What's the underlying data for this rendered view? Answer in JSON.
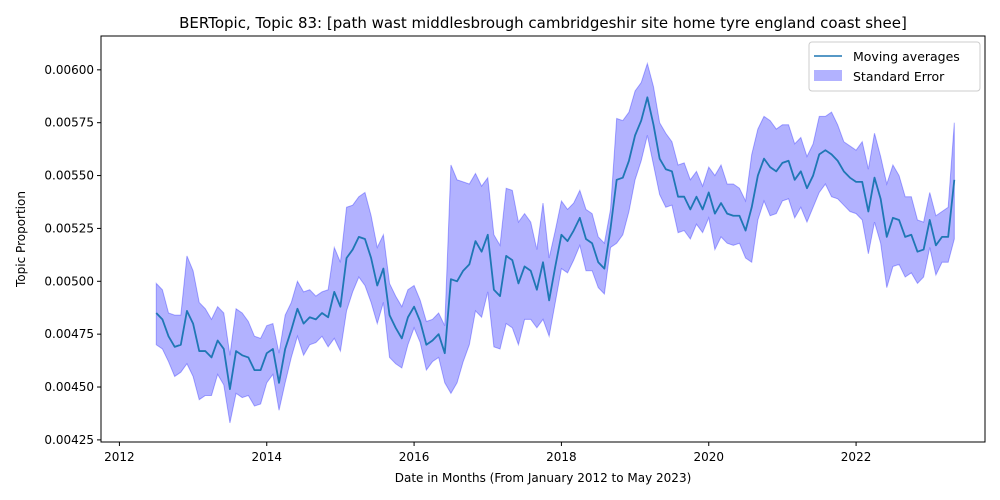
{
  "chart_data": {
    "type": "line",
    "title": "BERTopic, Topic 83: [path wast middlesbrough cambridgeshir site home tyre england coast shee]",
    "xlabel": "Date in Months (From January 2012 to May 2023)",
    "ylabel": "Topic Proportion",
    "xlim": [
      "2011-10",
      "2023-10"
    ],
    "ylim": [
      0.00424,
      0.00616
    ],
    "x_ticks": [
      "2012",
      "2014",
      "2016",
      "2018",
      "2020",
      "2022"
    ],
    "y_ticks": [
      "0.00425",
      "0.00450",
      "0.00475",
      "0.00500",
      "0.00525",
      "0.00550",
      "0.00575",
      "0.00600"
    ],
    "grid": false,
    "legend_position": "top-right",
    "colors": {
      "line": "#1f77b4",
      "band": "#0000ff",
      "band_opacity": 0.3
    },
    "series": [
      {
        "name": "Moving averages",
        "points": [
          [
            "2012-07",
            0.00485
          ],
          [
            "2012-08",
            0.00482
          ],
          [
            "2012-09",
            0.00474
          ],
          [
            "2012-10",
            0.00469
          ],
          [
            "2012-11",
            0.0047
          ],
          [
            "2012-12",
            0.00486
          ],
          [
            "2013-01",
            0.0048
          ],
          [
            "2013-02",
            0.00467
          ],
          [
            "2013-03",
            0.00467
          ],
          [
            "2013-04",
            0.00464
          ],
          [
            "2013-05",
            0.00472
          ],
          [
            "2013-06",
            0.00468
          ],
          [
            "2013-07",
            0.00449
          ],
          [
            "2013-08",
            0.00467
          ],
          [
            "2013-09",
            0.00465
          ],
          [
            "2013-10",
            0.00464
          ],
          [
            "2013-11",
            0.00458
          ],
          [
            "2013-12",
            0.00458
          ],
          [
            "2014-01",
            0.00466
          ],
          [
            "2014-02",
            0.00468
          ],
          [
            "2014-03",
            0.00452
          ],
          [
            "2014-04",
            0.00468
          ],
          [
            "2014-05",
            0.00477
          ],
          [
            "2014-06",
            0.00487
          ],
          [
            "2014-07",
            0.0048
          ],
          [
            "2014-08",
            0.00483
          ],
          [
            "2014-09",
            0.00482
          ],
          [
            "2014-10",
            0.00485
          ],
          [
            "2014-11",
            0.00483
          ],
          [
            "2014-12",
            0.00495
          ],
          [
            "2015-01",
            0.00488
          ],
          [
            "2015-02",
            0.00511
          ],
          [
            "2015-03",
            0.00515
          ],
          [
            "2015-04",
            0.00521
          ],
          [
            "2015-05",
            0.0052
          ],
          [
            "2015-06",
            0.00511
          ],
          [
            "2015-07",
            0.00498
          ],
          [
            "2015-08",
            0.00506
          ],
          [
            "2015-09",
            0.00484
          ],
          [
            "2015-10",
            0.00478
          ],
          [
            "2015-11",
            0.00473
          ],
          [
            "2015-12",
            0.00483
          ],
          [
            "2016-01",
            0.00488
          ],
          [
            "2016-02",
            0.00481
          ],
          [
            "2016-03",
            0.0047
          ],
          [
            "2016-04",
            0.00472
          ],
          [
            "2016-05",
            0.00475
          ],
          [
            "2016-06",
            0.00466
          ],
          [
            "2016-07",
            0.00501
          ],
          [
            "2016-08",
            0.005
          ],
          [
            "2016-09",
            0.00505
          ],
          [
            "2016-10",
            0.00508
          ],
          [
            "2016-11",
            0.00519
          ],
          [
            "2016-12",
            0.00514
          ],
          [
            "2017-01",
            0.00522
          ],
          [
            "2017-02",
            0.00496
          ],
          [
            "2017-03",
            0.00493
          ],
          [
            "2017-04",
            0.00512
          ],
          [
            "2017-05",
            0.0051
          ],
          [
            "2017-06",
            0.00499
          ],
          [
            "2017-07",
            0.00507
          ],
          [
            "2017-08",
            0.00505
          ],
          [
            "2017-09",
            0.00496
          ],
          [
            "2017-10",
            0.00509
          ],
          [
            "2017-11",
            0.00491
          ],
          [
            "2017-12",
            0.00507
          ],
          [
            "2018-01",
            0.00522
          ],
          [
            "2018-02",
            0.00519
          ],
          [
            "2018-03",
            0.00524
          ],
          [
            "2018-04",
            0.0053
          ],
          [
            "2018-05",
            0.0052
          ],
          [
            "2018-06",
            0.00518
          ],
          [
            "2018-07",
            0.00509
          ],
          [
            "2018-08",
            0.00506
          ],
          [
            "2018-09",
            0.00525
          ],
          [
            "2018-10",
            0.00548
          ],
          [
            "2018-11",
            0.00549
          ],
          [
            "2018-12",
            0.00557
          ],
          [
            "2019-01",
            0.00569
          ],
          [
            "2019-02",
            0.00576
          ],
          [
            "2019-03",
            0.00587
          ],
          [
            "2019-04",
            0.00574
          ],
          [
            "2019-05",
            0.00558
          ],
          [
            "2019-06",
            0.00553
          ],
          [
            "2019-07",
            0.00552
          ],
          [
            "2019-08",
            0.0054
          ],
          [
            "2019-09",
            0.0054
          ],
          [
            "2019-10",
            0.00534
          ],
          [
            "2019-11",
            0.0054
          ],
          [
            "2019-12",
            0.00534
          ],
          [
            "2020-01",
            0.00542
          ],
          [
            "2020-02",
            0.00532
          ],
          [
            "2020-03",
            0.00537
          ],
          [
            "2020-04",
            0.00532
          ],
          [
            "2020-05",
            0.00531
          ],
          [
            "2020-06",
            0.00531
          ],
          [
            "2020-07",
            0.00524
          ],
          [
            "2020-08",
            0.00535
          ],
          [
            "2020-09",
            0.0055
          ],
          [
            "2020-10",
            0.00558
          ],
          [
            "2020-11",
            0.00554
          ],
          [
            "2020-12",
            0.00552
          ],
          [
            "2021-01",
            0.00556
          ],
          [
            "2021-02",
            0.00557
          ],
          [
            "2021-03",
            0.00548
          ],
          [
            "2021-04",
            0.00552
          ],
          [
            "2021-05",
            0.00544
          ],
          [
            "2021-06",
            0.0055
          ],
          [
            "2021-07",
            0.0056
          ],
          [
            "2021-08",
            0.00562
          ],
          [
            "2021-09",
            0.0056
          ],
          [
            "2021-10",
            0.00557
          ],
          [
            "2021-11",
            0.00552
          ],
          [
            "2021-12",
            0.00549
          ],
          [
            "2022-01",
            0.00547
          ],
          [
            "2022-02",
            0.00547
          ],
          [
            "2022-03",
            0.00533
          ],
          [
            "2022-04",
            0.00549
          ],
          [
            "2022-05",
            0.00539
          ],
          [
            "2022-06",
            0.00521
          ],
          [
            "2022-07",
            0.0053
          ],
          [
            "2022-08",
            0.00529
          ],
          [
            "2022-09",
            0.00521
          ],
          [
            "2022-10",
            0.00522
          ],
          [
            "2022-11",
            0.00514
          ],
          [
            "2022-12",
            0.00515
          ],
          [
            "2023-01",
            0.00529
          ],
          [
            "2023-02",
            0.00517
          ],
          [
            "2023-03",
            0.00521
          ],
          [
            "2023-04",
            0.00521
          ],
          [
            "2023-05",
            0.00548
          ]
        ]
      },
      {
        "name": "Standard Error",
        "upper": [
          0.00499,
          0.00496,
          0.00485,
          0.00484,
          0.00484,
          0.00512,
          0.00505,
          0.0049,
          0.00487,
          0.00482,
          0.00488,
          0.00485,
          0.00465,
          0.00487,
          0.00485,
          0.00481,
          0.00474,
          0.00473,
          0.00479,
          0.0048,
          0.00466,
          0.00484,
          0.0049,
          0.005,
          0.00495,
          0.00496,
          0.00493,
          0.00495,
          0.00496,
          0.00516,
          0.00509,
          0.00535,
          0.00536,
          0.0054,
          0.00542,
          0.00531,
          0.00516,
          0.00522,
          0.00499,
          0.00493,
          0.00488,
          0.00496,
          0.00498,
          0.00491,
          0.00481,
          0.00482,
          0.00485,
          0.00479,
          0.00555,
          0.00548,
          0.00547,
          0.00546,
          0.00551,
          0.00545,
          0.00549,
          0.00522,
          0.00517,
          0.00544,
          0.00543,
          0.00528,
          0.00532,
          0.00528,
          0.00515,
          0.00537,
          0.00511,
          0.00524,
          0.00538,
          0.00534,
          0.00537,
          0.00543,
          0.00534,
          0.00532,
          0.00521,
          0.00518,
          0.00534,
          0.00577,
          0.00576,
          0.0058,
          0.0059,
          0.00594,
          0.00603,
          0.00592,
          0.00575,
          0.0057,
          0.00566,
          0.00555,
          0.00556,
          0.00548,
          0.00552,
          0.00545,
          0.00554,
          0.0055,
          0.00555,
          0.00546,
          0.00546,
          0.00544,
          0.00538,
          0.0056,
          0.00572,
          0.00578,
          0.00576,
          0.00572,
          0.00574,
          0.00574,
          0.00565,
          0.00568,
          0.00559,
          0.00565,
          0.00578,
          0.00578,
          0.0058,
          0.00574,
          0.00566,
          0.00564,
          0.00562,
          0.00566,
          0.00553,
          0.0057,
          0.00559,
          0.00546,
          0.00555,
          0.0055,
          0.0054,
          0.0054,
          0.00529,
          0.00528,
          0.00542,
          0.00531,
          0.00533,
          0.00535,
          0.00575
        ],
        "lower": [
          0.0047,
          0.00468,
          0.00462,
          0.00455,
          0.00457,
          0.00461,
          0.00455,
          0.00444,
          0.00446,
          0.00446,
          0.00456,
          0.00451,
          0.00433,
          0.00447,
          0.00445,
          0.00446,
          0.00441,
          0.00442,
          0.00452,
          0.00456,
          0.00439,
          0.00452,
          0.00464,
          0.00474,
          0.00465,
          0.0047,
          0.00471,
          0.00474,
          0.00469,
          0.00473,
          0.00467,
          0.00486,
          0.00495,
          0.00502,
          0.00498,
          0.0049,
          0.0048,
          0.0049,
          0.00464,
          0.00461,
          0.00459,
          0.0047,
          0.00478,
          0.00471,
          0.00458,
          0.00462,
          0.00464,
          0.00452,
          0.00447,
          0.00452,
          0.00462,
          0.0047,
          0.00486,
          0.00483,
          0.00495,
          0.00469,
          0.00468,
          0.0048,
          0.00478,
          0.0047,
          0.00482,
          0.00482,
          0.00478,
          0.00482,
          0.00474,
          0.0049,
          0.00506,
          0.00504,
          0.0051,
          0.00517,
          0.00505,
          0.00505,
          0.00497,
          0.00494,
          0.00516,
          0.00518,
          0.00522,
          0.00533,
          0.00548,
          0.00557,
          0.00569,
          0.00555,
          0.00541,
          0.00535,
          0.00536,
          0.00523,
          0.00524,
          0.0052,
          0.00527,
          0.00523,
          0.0053,
          0.00515,
          0.00521,
          0.00518,
          0.00517,
          0.00518,
          0.00511,
          0.00509,
          0.00529,
          0.00538,
          0.00531,
          0.00532,
          0.00538,
          0.00539,
          0.0053,
          0.00535,
          0.00528,
          0.00535,
          0.00542,
          0.00546,
          0.0054,
          0.00539,
          0.00536,
          0.00533,
          0.00532,
          0.00529,
          0.00513,
          0.00528,
          0.00518,
          0.00497,
          0.00507,
          0.00508,
          0.00502,
          0.00504,
          0.00499,
          0.00502,
          0.00516,
          0.00503,
          0.00509,
          0.00509,
          0.0052
        ]
      }
    ]
  }
}
